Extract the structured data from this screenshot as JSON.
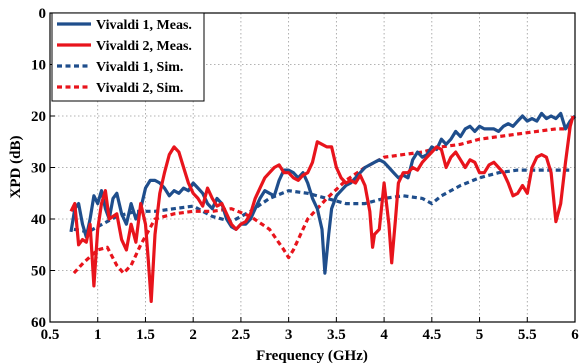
{
  "chart_data": {
    "type": "line",
    "xlabel": "Frequency (GHz)",
    "ylabel": "XPD (dB)",
    "xlim": [
      0.5,
      6
    ],
    "ylim": [
      60,
      0
    ],
    "y_reversed": true,
    "x_ticks": [
      0.5,
      1,
      1.5,
      2,
      2.5,
      3,
      3.5,
      4,
      4.5,
      5,
      5.5,
      6
    ],
    "x_tick_labels": [
      "0.5",
      "1",
      "1.5",
      "2",
      "2.5",
      "3",
      "3.5",
      "4",
      "4.5",
      "5",
      "5.5",
      "6"
    ],
    "y_ticks": [
      0,
      10,
      20,
      30,
      40,
      50,
      60
    ],
    "y_tick_labels": [
      "0",
      "10",
      "20",
      "30",
      "40",
      "50",
      "60"
    ],
    "grid": true,
    "legend_position": "top-left",
    "series": [
      {
        "name": "Vivaldi 1, Meas.",
        "color": "#1f4e8c",
        "style": "solid",
        "points": [
          [
            0.72,
            42.5
          ],
          [
            0.76,
            38
          ],
          [
            0.8,
            37
          ],
          [
            0.84,
            41
          ],
          [
            0.88,
            43.5
          ],
          [
            0.92,
            40
          ],
          [
            0.96,
            35.5
          ],
          [
            1.0,
            37
          ],
          [
            1.04,
            34.5
          ],
          [
            1.08,
            38
          ],
          [
            1.12,
            40
          ],
          [
            1.16,
            36
          ],
          [
            1.2,
            35
          ],
          [
            1.25,
            39
          ],
          [
            1.3,
            41
          ],
          [
            1.35,
            37
          ],
          [
            1.4,
            40
          ],
          [
            1.45,
            38
          ],
          [
            1.5,
            34
          ],
          [
            1.55,
            32.5
          ],
          [
            1.6,
            32.5
          ],
          [
            1.65,
            33
          ],
          [
            1.7,
            34
          ],
          [
            1.75,
            35.5
          ],
          [
            1.8,
            34.5
          ],
          [
            1.85,
            35
          ],
          [
            1.9,
            34
          ],
          [
            1.95,
            34.5
          ],
          [
            2.0,
            33
          ],
          [
            2.05,
            34
          ],
          [
            2.1,
            35
          ],
          [
            2.15,
            37
          ],
          [
            2.2,
            38
          ],
          [
            2.25,
            36
          ],
          [
            2.3,
            37
          ],
          [
            2.35,
            40
          ],
          [
            2.4,
            41.5
          ],
          [
            2.45,
            42
          ],
          [
            2.5,
            41
          ],
          [
            2.55,
            41
          ],
          [
            2.6,
            40
          ],
          [
            2.65,
            38
          ],
          [
            2.7,
            36
          ],
          [
            2.75,
            34.5
          ],
          [
            2.8,
            35
          ],
          [
            2.85,
            35.5
          ],
          [
            2.9,
            32.5
          ],
          [
            2.95,
            30.5
          ],
          [
            3.0,
            30.5
          ],
          [
            3.05,
            31
          ],
          [
            3.1,
            32
          ],
          [
            3.15,
            31
          ],
          [
            3.2,
            33
          ],
          [
            3.25,
            36
          ],
          [
            3.3,
            38
          ],
          [
            3.35,
            42
          ],
          [
            3.38,
            50.5
          ],
          [
            3.42,
            43
          ],
          [
            3.45,
            38
          ],
          [
            3.5,
            35.5
          ],
          [
            3.55,
            34.5
          ],
          [
            3.6,
            33.5
          ],
          [
            3.65,
            33
          ],
          [
            3.7,
            32
          ],
          [
            3.75,
            31
          ],
          [
            3.8,
            30
          ],
          [
            3.85,
            29.5
          ],
          [
            3.9,
            29
          ],
          [
            3.95,
            28.5
          ],
          [
            4.0,
            29
          ],
          [
            4.05,
            30
          ],
          [
            4.1,
            31
          ],
          [
            4.15,
            32
          ],
          [
            4.2,
            31.5
          ],
          [
            4.25,
            32
          ],
          [
            4.3,
            28.5
          ],
          [
            4.35,
            27
          ],
          [
            4.4,
            28
          ],
          [
            4.45,
            27.5
          ],
          [
            4.5,
            26
          ],
          [
            4.55,
            26.5
          ],
          [
            4.6,
            24.5
          ],
          [
            4.65,
            25.5
          ],
          [
            4.7,
            24.5
          ],
          [
            4.75,
            23
          ],
          [
            4.8,
            24
          ],
          [
            4.85,
            22.5
          ],
          [
            4.9,
            22
          ],
          [
            4.95,
            23
          ],
          [
            5.0,
            22
          ],
          [
            5.05,
            22.5
          ],
          [
            5.1,
            22.5
          ],
          [
            5.15,
            22.5
          ],
          [
            5.2,
            23
          ],
          [
            5.25,
            22
          ],
          [
            5.3,
            21.5
          ],
          [
            5.35,
            22
          ],
          [
            5.4,
            21
          ],
          [
            5.45,
            20
          ],
          [
            5.5,
            21
          ],
          [
            5.55,
            20.5
          ],
          [
            5.6,
            21
          ],
          [
            5.65,
            19.5
          ],
          [
            5.7,
            20.5
          ],
          [
            5.75,
            20
          ],
          [
            5.8,
            20.5
          ],
          [
            5.85,
            19.5
          ],
          [
            5.9,
            22.5
          ],
          [
            5.95,
            21
          ],
          [
            6.0,
            20
          ]
        ]
      },
      {
        "name": "Vivaldi 2, Meas.",
        "color": "#e8141c",
        "style": "solid",
        "points": [
          [
            0.72,
            38.5
          ],
          [
            0.76,
            37
          ],
          [
            0.8,
            45
          ],
          [
            0.84,
            44
          ],
          [
            0.88,
            44.5
          ],
          [
            0.92,
            41
          ],
          [
            0.96,
            53
          ],
          [
            1.0,
            42
          ],
          [
            1.04,
            37
          ],
          [
            1.08,
            34.5
          ],
          [
            1.12,
            40
          ],
          [
            1.16,
            39.5
          ],
          [
            1.2,
            39
          ],
          [
            1.25,
            44
          ],
          [
            1.3,
            46
          ],
          [
            1.35,
            41
          ],
          [
            1.4,
            44.5
          ],
          [
            1.45,
            37
          ],
          [
            1.5,
            41
          ],
          [
            1.53,
            48
          ],
          [
            1.56,
            56
          ],
          [
            1.6,
            43
          ],
          [
            1.65,
            35
          ],
          [
            1.7,
            31
          ],
          [
            1.75,
            27.5
          ],
          [
            1.8,
            26
          ],
          [
            1.85,
            27
          ],
          [
            1.9,
            30
          ],
          [
            1.95,
            33
          ],
          [
            2.0,
            35
          ],
          [
            2.05,
            36
          ],
          [
            2.1,
            37.5
          ],
          [
            2.15,
            34
          ],
          [
            2.2,
            36
          ],
          [
            2.25,
            37.5
          ],
          [
            2.3,
            37
          ],
          [
            2.35,
            39
          ],
          [
            2.4,
            41
          ],
          [
            2.45,
            42
          ],
          [
            2.5,
            41
          ],
          [
            2.55,
            40.5
          ],
          [
            2.6,
            39
          ],
          [
            2.65,
            36
          ],
          [
            2.7,
            34
          ],
          [
            2.75,
            32
          ],
          [
            2.8,
            31
          ],
          [
            2.85,
            30
          ],
          [
            2.9,
            29.5
          ],
          [
            2.95,
            31
          ],
          [
            3.0,
            31
          ],
          [
            3.05,
            32
          ],
          [
            3.1,
            32.5
          ],
          [
            3.15,
            31.5
          ],
          [
            3.2,
            31
          ],
          [
            3.25,
            29
          ],
          [
            3.3,
            25
          ],
          [
            3.35,
            25.5
          ],
          [
            3.4,
            26
          ],
          [
            3.45,
            26
          ],
          [
            3.5,
            30
          ],
          [
            3.55,
            32
          ],
          [
            3.6,
            33
          ],
          [
            3.65,
            32.5
          ],
          [
            3.7,
            33
          ],
          [
            3.75,
            31.5
          ],
          [
            3.8,
            33.5
          ],
          [
            3.85,
            38.5
          ],
          [
            3.88,
            45.5
          ],
          [
            3.9,
            43
          ],
          [
            3.95,
            42
          ],
          [
            4.0,
            33
          ],
          [
            4.05,
            41
          ],
          [
            4.08,
            48.5
          ],
          [
            4.12,
            40
          ],
          [
            4.15,
            33
          ],
          [
            4.2,
            31
          ],
          [
            4.25,
            31
          ],
          [
            4.3,
            30
          ],
          [
            4.35,
            30.5
          ],
          [
            4.4,
            29
          ],
          [
            4.45,
            28
          ],
          [
            4.5,
            27
          ],
          [
            4.55,
            26
          ],
          [
            4.6,
            26.5
          ],
          [
            4.65,
            30
          ],
          [
            4.7,
            28
          ],
          [
            4.75,
            27
          ],
          [
            4.8,
            28.5
          ],
          [
            4.85,
            30
          ],
          [
            4.9,
            28.5
          ],
          [
            4.95,
            29
          ],
          [
            5.0,
            31
          ],
          [
            5.05,
            31
          ],
          [
            5.1,
            29.5
          ],
          [
            5.15,
            29
          ],
          [
            5.2,
            30
          ],
          [
            5.25,
            31
          ],
          [
            5.3,
            33
          ],
          [
            5.35,
            35.5
          ],
          [
            5.4,
            35
          ],
          [
            5.45,
            33.5
          ],
          [
            5.5,
            35
          ],
          [
            5.55,
            30
          ],
          [
            5.6,
            28
          ],
          [
            5.65,
            27.5
          ],
          [
            5.7,
            28
          ],
          [
            5.75,
            31
          ],
          [
            5.8,
            40.5
          ],
          [
            5.85,
            37
          ],
          [
            5.9,
            29
          ],
          [
            5.95,
            22
          ],
          [
            5.98,
            20
          ]
        ]
      },
      {
        "name": "Vivaldi 1, Sim.",
        "color": "#1f4e8c",
        "style": "dashed",
        "points": [
          [
            0.75,
            42
          ],
          [
            0.9,
            42.5
          ],
          [
            1.0,
            41.5
          ],
          [
            1.2,
            39.5
          ],
          [
            1.4,
            38.5
          ],
          [
            1.6,
            38.5
          ],
          [
            1.8,
            38
          ],
          [
            2.0,
            37.5
          ],
          [
            2.2,
            39.5
          ],
          [
            2.4,
            40.5
          ],
          [
            2.6,
            38.5
          ],
          [
            2.8,
            36
          ],
          [
            3.0,
            34.5
          ],
          [
            3.2,
            35
          ],
          [
            3.4,
            36
          ],
          [
            3.6,
            37
          ],
          [
            3.8,
            37
          ],
          [
            4.0,
            36
          ],
          [
            4.2,
            35.5
          ],
          [
            4.4,
            36
          ],
          [
            4.5,
            37
          ],
          [
            4.6,
            35.5
          ],
          [
            4.8,
            33.5
          ],
          [
            5.0,
            32
          ],
          [
            5.2,
            31
          ],
          [
            5.4,
            30.5
          ],
          [
            5.6,
            30.5
          ],
          [
            5.8,
            30.5
          ],
          [
            5.95,
            30.5
          ]
        ]
      },
      {
        "name": "Vivaldi 2, Sim.",
        "color": "#e8141c",
        "style": "dashed",
        "points": [
          [
            0.75,
            50.5
          ],
          [
            0.85,
            48.5
          ],
          [
            1.0,
            46
          ],
          [
            1.1,
            45.5
          ],
          [
            1.2,
            49
          ],
          [
            1.27,
            50.5
          ],
          [
            1.35,
            49
          ],
          [
            1.45,
            45
          ],
          [
            1.6,
            40
          ],
          [
            1.8,
            39
          ],
          [
            2.0,
            38.5
          ],
          [
            2.2,
            38.5
          ],
          [
            2.4,
            38
          ],
          [
            2.6,
            39.5
          ],
          [
            2.8,
            42
          ],
          [
            2.95,
            46
          ],
          [
            3.0,
            47.5
          ],
          [
            3.05,
            46
          ],
          [
            3.2,
            40
          ],
          [
            3.4,
            36
          ],
          [
            3.6,
            32.5
          ],
          [
            3.8,
            30
          ],
          [
            4.0,
            28
          ],
          [
            4.2,
            27.5
          ],
          [
            4.4,
            27
          ],
          [
            4.6,
            26
          ],
          [
            4.8,
            25.5
          ],
          [
            5.0,
            24.5
          ],
          [
            5.2,
            24
          ],
          [
            5.4,
            23.5
          ],
          [
            5.6,
            23
          ],
          [
            5.8,
            22.5
          ],
          [
            5.95,
            22.5
          ]
        ]
      }
    ]
  }
}
